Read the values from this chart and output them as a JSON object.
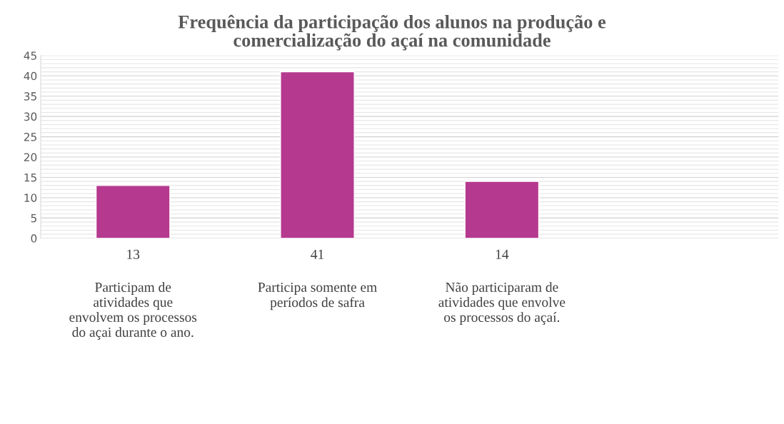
{
  "chart_data": {
    "type": "bar",
    "title": "Frequência da participação dos alunos na produção e\ncomercialização do açaí na comunidade",
    "categories": [
      "Participam de\natividades que\nenvolvem os processos\ndo açai durante o ano.",
      "Participa somente em\nperíodos de safra",
      "Não participaram de\natividades que envolve\nos processos do açaí.",
      null
    ],
    "values": [
      13,
      41,
      14,
      null
    ],
    "color": "#b5398f",
    "data_labels": true,
    "ylim": [
      0,
      45
    ],
    "yticks": [
      0,
      5,
      10,
      15,
      20,
      25,
      30,
      35,
      40,
      45
    ],
    "grid": "y"
  }
}
